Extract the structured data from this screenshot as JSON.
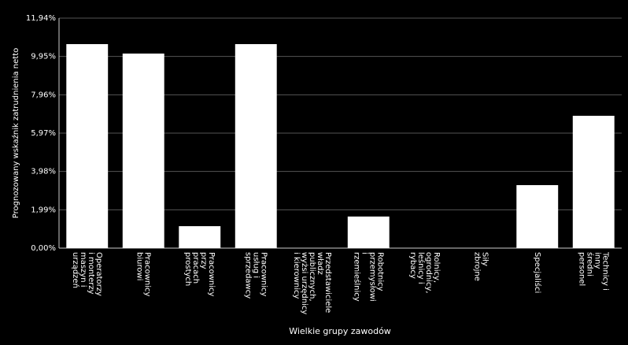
{
  "chart_data": {
    "type": "bar",
    "x_label": "Wielkie grupy zawodów",
    "y_label": "Prognozowany wskaźnik zatrudnienia netto",
    "categories": [
      [
        "Operatorzy",
        "i monterzy",
        "maszyn i",
        "urządzeń"
      ],
      [
        "Pracownicy",
        "biurowi"
      ],
      [
        "Pracownicy",
        "przy",
        "pracach",
        "prostych"
      ],
      [
        "Pracownicy",
        "usług i",
        "sprzedawcy"
      ],
      [
        "Przedstawiciele",
        "władz",
        "publicznych,",
        "wyżsi urzędnicy",
        "i kierownicy"
      ],
      [
        "Robotnicy",
        "przemysłowi",
        "i",
        "rzemieślnicy"
      ],
      [
        "Rolnicy,",
        "ogrodnicy,",
        "leśnicy i",
        "rybacy"
      ],
      [
        "Siły",
        "zbrojne"
      ],
      [
        "Specjaliści"
      ],
      [
        "Technicy i",
        "inny",
        "średni",
        "personel"
      ]
    ],
    "values": [
      10.59,
      10.1,
      1.14,
      10.59,
      0,
      1.64,
      0,
      0,
      3.27,
      6.87
    ],
    "color": "#ffffff",
    "ylim": [
      0,
      11.94
    ],
    "yticks": [
      {
        "value": 0,
        "label": "0,00%"
      },
      {
        "value": 1.99,
        "label": "1,99%"
      },
      {
        "value": 3.98,
        "label": "3,98%"
      },
      {
        "value": 5.97,
        "label": "5,97%"
      },
      {
        "value": 7.96,
        "label": "7,96%"
      },
      {
        "value": 9.95,
        "label": "9,95%"
      },
      {
        "value": 11.94,
        "label": "11,94%"
      }
    ],
    "grid": true
  }
}
